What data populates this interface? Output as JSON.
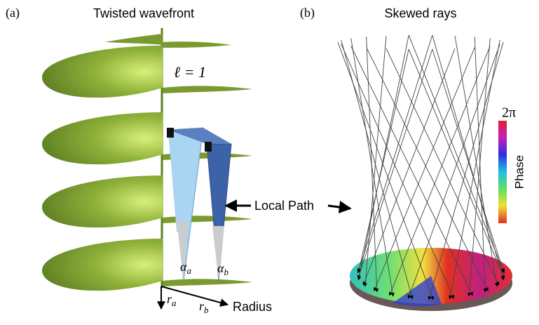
{
  "panels": [
    {
      "label": "(a)",
      "title": "Twisted wavefront"
    },
    {
      "label": "(b)",
      "title": "Skewed rays"
    }
  ],
  "annotations": {
    "mode": "ℓ = 1",
    "local_path": "Local Path",
    "alpha_a": {
      "symbol": "α",
      "subscript": "a"
    },
    "alpha_b": {
      "symbol": "α",
      "subscript": "b"
    },
    "r_a": {
      "symbol": "r",
      "subscript": "a"
    },
    "r_b": {
      "symbol": "r",
      "subscript": "b"
    },
    "radius": "Radius"
  },
  "colorbar": {
    "max_label": "2π",
    "title": "Phase"
  }
}
